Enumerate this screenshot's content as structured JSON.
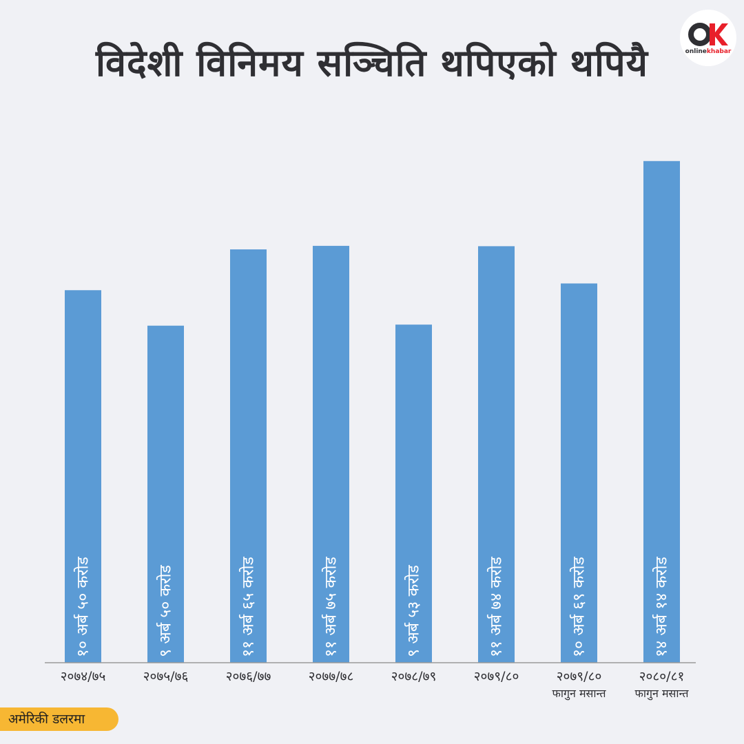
{
  "header": {
    "title": "विदेशी विनिमय सञ्चिति थपिएको थपियै",
    "logo_brand": "online",
    "logo_brand_accent": "khabar"
  },
  "unit_label": "अमेरिकी डलरमा",
  "colors": {
    "bar": "#5b9bd5",
    "background": "#f0f1f5",
    "badge": "#f7b733",
    "title": "#2f2f33",
    "logo_red": "#e8202a"
  },
  "chart_data": {
    "type": "bar",
    "title": "विदेशी विनिमय सञ्चिति थपिएको थपियै",
    "xlabel": "",
    "ylabel": "",
    "unit": "अमेरिकी डलरमा",
    "grid": false,
    "legend": "none",
    "ylim": [
      0,
      16
    ],
    "categories": [
      [
        "२०७४/७५"
      ],
      [
        "२०७५/७६"
      ],
      [
        "२०७६/७७"
      ],
      [
        "२०७७/७८"
      ],
      [
        "२०७८/७९"
      ],
      [
        "२०७९/८०"
      ],
      [
        "२०७९/८०",
        "फागुन मसान्त"
      ],
      [
        "२०८०/८१",
        "फागुन मसान्त"
      ]
    ],
    "values": [
      10.5,
      9.5,
      11.65,
      11.75,
      9.53,
      11.74,
      10.69,
      14.14
    ],
    "data_labels": [
      "१० अर्ब ५० करोड",
      "९ अर्ब ५० करोड",
      "११ अर्ब ६५ करोड",
      "११ अर्ब ७५ करोड",
      "९ अर्ब ५३ करोड",
      "११ अर्ब ७४ करोड",
      "१० अर्ब ६९ करोड",
      "१४ अर्ब १४ करोड"
    ]
  }
}
